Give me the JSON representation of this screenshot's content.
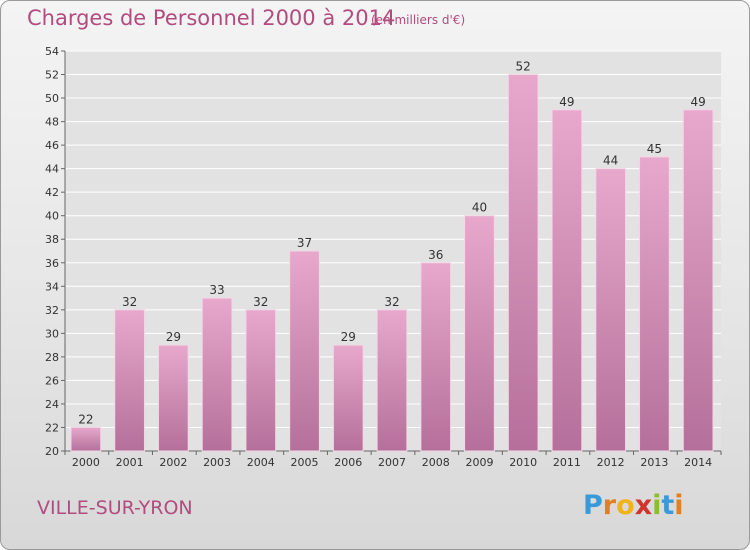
{
  "header": {
    "title": "Charges de Personnel 2000 à 2014",
    "subtitle": "(en milliers d'€)"
  },
  "footer": {
    "location": "VILLE-SUR-YRON",
    "logo_text": "Proxiti"
  },
  "colors": {
    "accent_text": "#b24b7e",
    "bar_top": "#e8a8cc",
    "bar_bottom": "#b4709a",
    "logo_letters": [
      "#3a9ad9",
      "#e2801f",
      "#f2b21a",
      "#d0342c",
      "#8cbf2f",
      "#3a9ad9",
      "#e2801f"
    ]
  },
  "chart_data": {
    "type": "bar",
    "categories": [
      "2000",
      "2001",
      "2002",
      "2003",
      "2004",
      "2005",
      "2006",
      "2007",
      "2008",
      "2009",
      "2010",
      "2011",
      "2012",
      "2013",
      "2014"
    ],
    "values": [
      22,
      32,
      29,
      33,
      32,
      37,
      29,
      32,
      36,
      40,
      52,
      49,
      44,
      45,
      49
    ],
    "title": "Charges de Personnel 2000 à 2014",
    "subtitle": "(en milliers d'€)",
    "ylim": [
      20,
      54
    ],
    "yticks": [
      20,
      22,
      24,
      26,
      28,
      30,
      32,
      34,
      36,
      38,
      40,
      42,
      44,
      46,
      48,
      50,
      52,
      54
    ],
    "grid": true,
    "data_labels": true
  }
}
